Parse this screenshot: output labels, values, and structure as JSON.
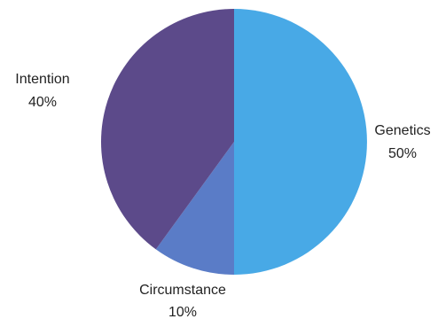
{
  "chart_data": {
    "type": "pie",
    "slices": [
      {
        "label": "Genetics",
        "value": 50,
        "display": "50%",
        "color": "#48a9e6"
      },
      {
        "label": "Circumstance",
        "value": 10,
        "display": "10%",
        "color": "#5a7cc7"
      },
      {
        "label": "Intention",
        "value": 40,
        "display": "40%",
        "color": "#5c4a8a"
      }
    ],
    "title": "",
    "legend": "none",
    "start_angle_deg": 0,
    "direction": "clockwise"
  }
}
